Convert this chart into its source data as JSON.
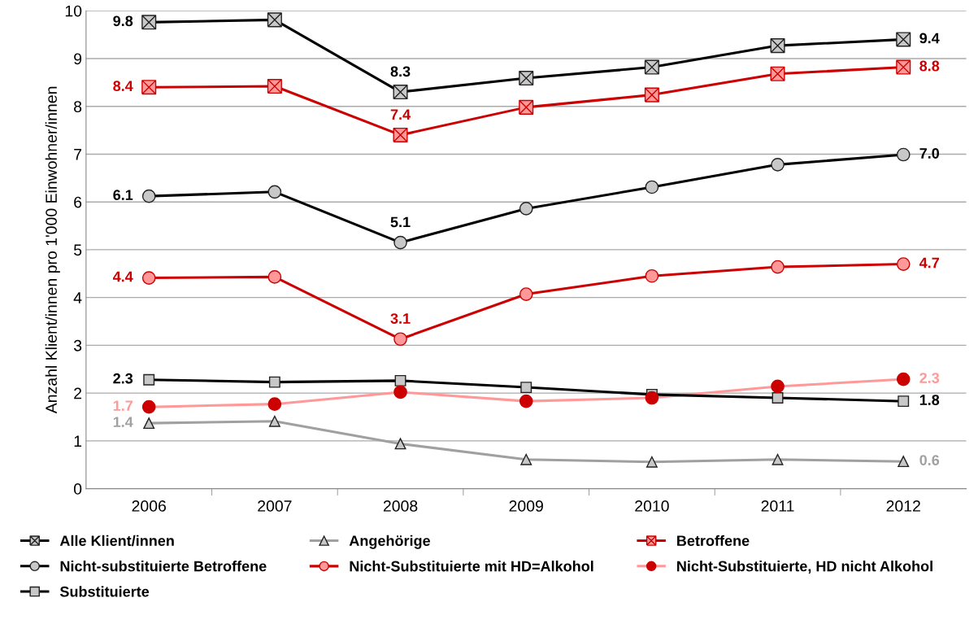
{
  "chart_data": {
    "type": "line",
    "ylabel": "Anzahl Klient/innen pro 1'000 Einwohner/innen",
    "categories": [
      "2006",
      "2007",
      "2008",
      "2009",
      "2010",
      "2011",
      "2012"
    ],
    "ylim": [
      0,
      10
    ],
    "yticks": [
      0,
      1,
      2,
      3,
      4,
      5,
      6,
      7,
      8,
      9,
      10
    ],
    "grid": "y",
    "legend": "bottom",
    "line_style": "solid",
    "series": [
      {
        "name": "Alle Klient/innen",
        "color": "#000000",
        "marker": "cross",
        "colors": [
          "#c8c8c8",
          "#c8c8c8",
          "#c8c8c8",
          "#c8c8c8",
          "#c8c8c8",
          "#c8c8c8",
          "#c8c8c8"
        ],
        "values": [
          9.76,
          9.81,
          8.3,
          8.59,
          8.82,
          9.27,
          9.4
        ],
        "value_labels": [
          "9.8",
          null,
          "8.3",
          null,
          null,
          null,
          "9.4"
        ]
      },
      {
        "name": "Angehörige",
        "color": "#a0a0a0",
        "marker": "triangle",
        "colors": [
          "#c8c8c8",
          "#c8c8c8",
          "#c8c8c8",
          "#c8c8c8",
          "#c8c8c8",
          "#c8c8c8",
          "#c8c8c8"
        ],
        "values": [
          1.37,
          1.41,
          0.94,
          0.61,
          0.56,
          0.61,
          0.57
        ],
        "value_labels": [
          "1.4",
          null,
          null,
          null,
          null,
          null,
          "0.6"
        ]
      },
      {
        "name": "Betroffene",
        "color": "#cc0000",
        "marker": "cross",
        "colors": [
          "#ff9999",
          "#ff9999",
          "#ff9999",
          "#ff9999",
          "#ff9999",
          "#ff9999",
          "#ff9999"
        ],
        "values": [
          8.4,
          8.42,
          7.4,
          7.98,
          8.24,
          8.68,
          8.82
        ],
        "value_labels": [
          "8.4",
          null,
          "7.4",
          null,
          null,
          null,
          "8.8"
        ]
      },
      {
        "name": "Nicht-substituierte Betroffene",
        "color": "#000000",
        "marker": "circle",
        "colors": [
          "#c8c8c8",
          "#c8c8c8",
          "#c8c8c8",
          "#c8c8c8",
          "#c8c8c8",
          "#c8c8c8",
          "#c8c8c8"
        ],
        "values": [
          6.12,
          6.21,
          5.15,
          5.86,
          6.31,
          6.78,
          6.99
        ],
        "value_labels": [
          "6.1",
          null,
          "5.1",
          null,
          null,
          null,
          "7.0"
        ]
      },
      {
        "name": "Nicht-Substituierte mit HD=Alkohol",
        "color": "#cc0000",
        "marker": "circle",
        "colors": [
          "#ff9999",
          "#ff9999",
          "#ff9999",
          "#ff9999",
          "#ff9999",
          "#ff9999",
          "#ff9999"
        ],
        "values": [
          4.41,
          4.43,
          3.13,
          4.07,
          4.45,
          4.64,
          4.7
        ],
        "value_labels": [
          "4.4",
          null,
          "3.1",
          null,
          null,
          null,
          "4.7"
        ]
      },
      {
        "name": "Nicht-Substituierte, HD nicht Alkohol",
        "color": "#ff9999",
        "marker": "circle",
        "colors": [
          "#cc0000",
          "#cc0000",
          "#cc0000",
          "#cc0000",
          "#cc0000",
          "#cc0000",
          "#cc0000"
        ],
        "values": [
          1.71,
          1.77,
          2.02,
          1.83,
          1.9,
          2.14,
          2.29
        ],
        "value_labels": [
          "1.7",
          null,
          null,
          null,
          null,
          null,
          "2.3"
        ]
      },
      {
        "name": "Substituierte",
        "color": "#000000",
        "marker": "square",
        "colors": [
          "#c8c8c8",
          "#c8c8c8",
          "#c8c8c8",
          "#c8c8c8",
          "#c8c8c8",
          "#c8c8c8",
          "#c8c8c8"
        ],
        "values": [
          2.28,
          2.23,
          2.26,
          2.12,
          1.97,
          1.9,
          1.83
        ],
        "value_labels": [
          "2.3",
          null,
          null,
          null,
          null,
          null,
          "1.8"
        ]
      }
    ]
  }
}
